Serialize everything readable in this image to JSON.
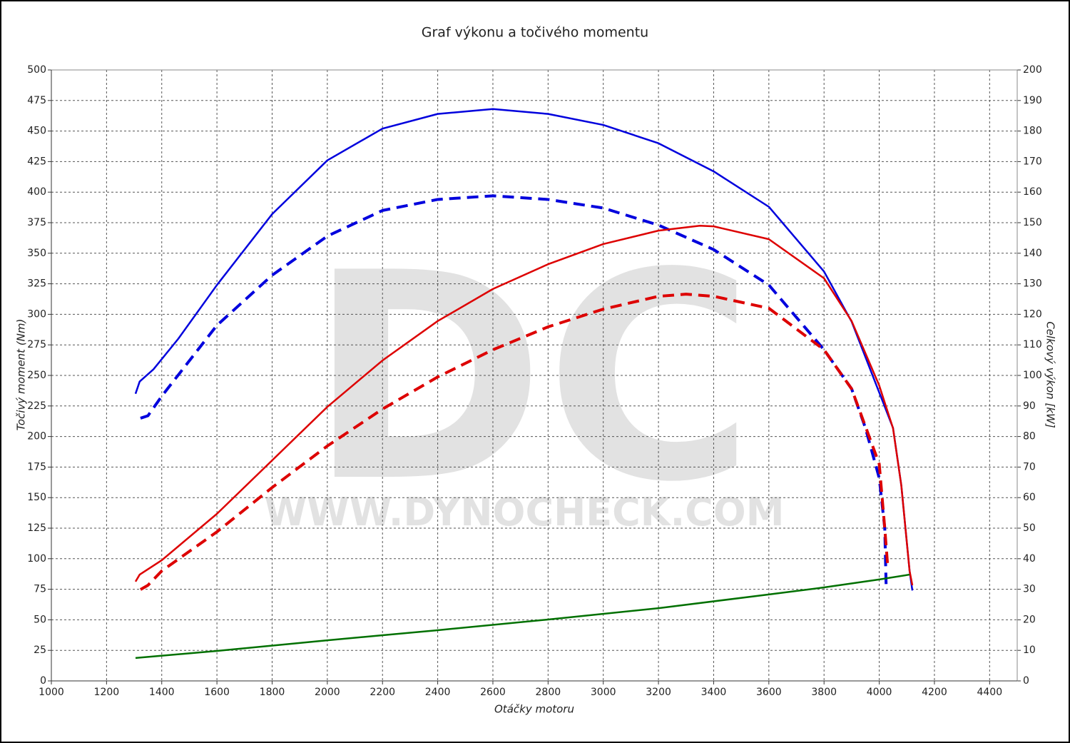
{
  "chart_data": {
    "type": "line",
    "title": "Graf výkonu a točivého momentu",
    "xlabel": "Otáčky motoru",
    "ylabel": "Točivý moment (Nm)",
    "y2label": "Celkový výkon [kW]",
    "watermark": {
      "logo": "DC",
      "url": "WWW.DYNOCHECK.COM"
    },
    "xlim": [
      1000,
      4500
    ],
    "xticks": [
      1000,
      1200,
      1400,
      1600,
      1800,
      2000,
      2200,
      2400,
      2600,
      2800,
      3000,
      3200,
      3400,
      3600,
      3800,
      4000,
      4200,
      4400
    ],
    "ylim": [
      0,
      500
    ],
    "yticks": [
      0,
      25,
      50,
      75,
      100,
      125,
      150,
      175,
      200,
      225,
      250,
      275,
      300,
      325,
      350,
      375,
      400,
      425,
      450,
      475,
      500
    ],
    "y2lim": [
      0,
      200
    ],
    "y2ticks": [
      0,
      10,
      20,
      30,
      40,
      50,
      60,
      70,
      80,
      90,
      100,
      110,
      120,
      130,
      140,
      150,
      160,
      170,
      180,
      190,
      200
    ],
    "grid": true,
    "series": [
      {
        "color": "#0000dd",
        "dashed": false,
        "axis": "y",
        "x": [
          1305,
          1320,
          1370,
          1460,
          1600,
          1800,
          2000,
          2200,
          2400,
          2600,
          2800,
          3000,
          3200,
          3400,
          3600,
          3800,
          3900,
          4000,
          4050,
          4080,
          4110,
          4120
        ],
        "values": [
          235,
          245,
          255,
          280,
          324,
          382,
          426,
          452,
          464,
          468,
          464,
          455,
          440,
          417,
          388,
          335,
          294,
          236,
          207,
          160,
          90,
          74
        ]
      },
      {
        "color": "#0000dd",
        "dashed": true,
        "axis": "y",
        "x": [
          1323,
          1350,
          1400,
          1600,
          1800,
          2000,
          2200,
          2400,
          2600,
          2800,
          3000,
          3200,
          3400,
          3600,
          3800,
          3900,
          3950,
          4000,
          4020,
          4025
        ],
        "values": [
          215,
          217,
          233,
          291,
          332,
          364,
          385,
          394,
          397,
          394,
          387,
          373,
          353,
          324,
          271,
          239,
          207,
          166,
          125,
          78
        ]
      },
      {
        "color": "#dd0000",
        "dashed": false,
        "axis": "y2",
        "x": [
          1305,
          1320,
          1400,
          1600,
          1800,
          2000,
          2200,
          2400,
          2600,
          2800,
          3000,
          3200,
          3350,
          3400,
          3600,
          3800,
          3900,
          4000,
          4050,
          4080,
          4110,
          4120
        ],
        "values": [
          32.5,
          34.8,
          39.5,
          54.7,
          72.2,
          89.7,
          104.9,
          117.8,
          128.3,
          136.4,
          143,
          147.4,
          149,
          148.8,
          144.6,
          131.8,
          117.8,
          96.7,
          82.7,
          64,
          36,
          31.3
        ]
      },
      {
        "color": "#dd0000",
        "dashed": true,
        "axis": "y2",
        "x": [
          1323,
          1350,
          1400,
          1600,
          1800,
          2000,
          2200,
          2400,
          2600,
          2800,
          3000,
          3200,
          3300,
          3400,
          3600,
          3800,
          3900,
          4000,
          4020,
          4030
        ],
        "values": [
          29.9,
          31.3,
          36,
          48.8,
          63.3,
          76.9,
          89,
          99.5,
          108.4,
          115.9,
          121.7,
          125.9,
          126.6,
          125.9,
          122,
          108.4,
          95.6,
          71,
          50,
          38.3
        ]
      },
      {
        "color": "#007000",
        "dashed": false,
        "axis": "y2",
        "x": [
          1305,
          1600,
          2000,
          2400,
          2800,
          3200,
          3600,
          3800,
          4000,
          4110
        ],
        "values": [
          7.5,
          9.8,
          13.3,
          16.6,
          20.1,
          23.8,
          28.3,
          30.6,
          33.2,
          34.8
        ]
      }
    ]
  }
}
